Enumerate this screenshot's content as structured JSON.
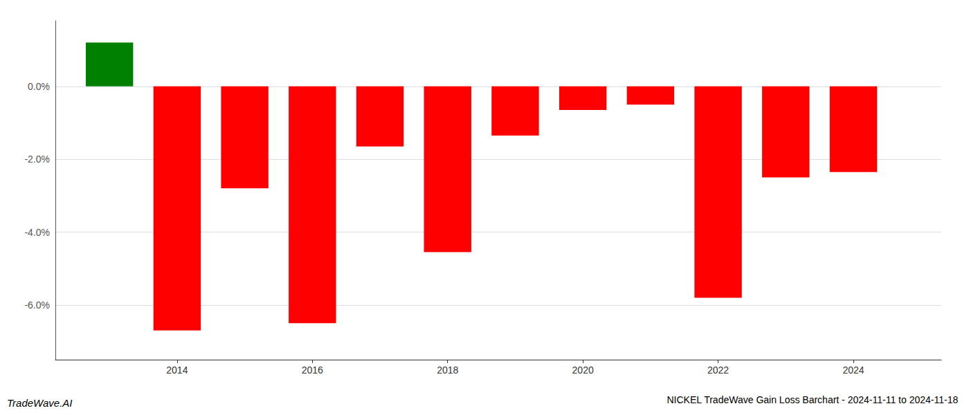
{
  "chart_data": {
    "type": "bar",
    "title": "NICKEL TradeWave Gain Loss Barchart - 2024-11-11 to 2024-11-18",
    "annotations": [
      "TradeWave.AI"
    ],
    "x": [
      2013,
      2014,
      2015,
      2016,
      2017,
      2018,
      2019,
      2020,
      2021,
      2022,
      2023,
      2024
    ],
    "values": [
      1.2,
      -6.7,
      -2.8,
      -6.5,
      -1.65,
      -4.55,
      -1.35,
      -0.65,
      -0.5,
      -5.8,
      -2.5,
      -2.35
    ],
    "colors": [
      "#008000",
      "#ff0000",
      "#ff0000",
      "#ff0000",
      "#ff0000",
      "#ff0000",
      "#ff0000",
      "#ff0000",
      "#ff0000",
      "#ff0000",
      "#ff0000",
      "#ff0000"
    ],
    "xlim": [
      2012.2,
      2025.3
    ],
    "xticks": [
      2014,
      2016,
      2018,
      2020,
      2022,
      2024
    ],
    "ylim": [
      -7.5,
      1.8
    ],
    "yticks": [
      {
        "value": -6,
        "label": "-6.0%"
      },
      {
        "value": -4,
        "label": "-4.0%"
      },
      {
        "value": -2,
        "label": "-2.0%"
      },
      {
        "value": 0,
        "label": "0.0%"
      }
    ],
    "grid": true
  }
}
